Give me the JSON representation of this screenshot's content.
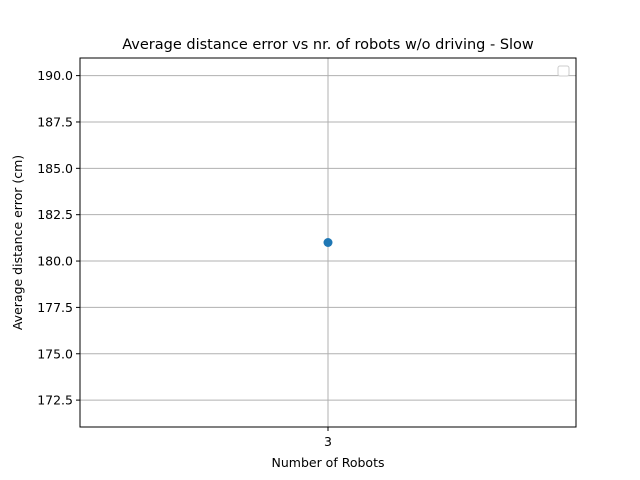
{
  "chart_data": {
    "type": "scatter",
    "title": "Average distance error vs nr. of robots w/o driving - Slow",
    "xlabel": "Number of Robots",
    "ylabel": "Average distance error (cm)",
    "x_categories": [
      "3"
    ],
    "series": [
      {
        "x": [
          "3"
        ],
        "y": [
          181.0
        ],
        "color": "#1f77b4"
      }
    ],
    "ylim": [
      171.05,
      190.95
    ],
    "yticks": [
      172.5,
      175.0,
      177.5,
      180.0,
      182.5,
      185.0,
      187.5,
      190.0
    ],
    "ytick_labels": [
      "172.5",
      "175.0",
      "177.5",
      "180.0",
      "182.5",
      "185.0",
      "187.5",
      "190.0"
    ],
    "grid": true,
    "legend": {
      "placement": "top-right",
      "entries": []
    }
  }
}
